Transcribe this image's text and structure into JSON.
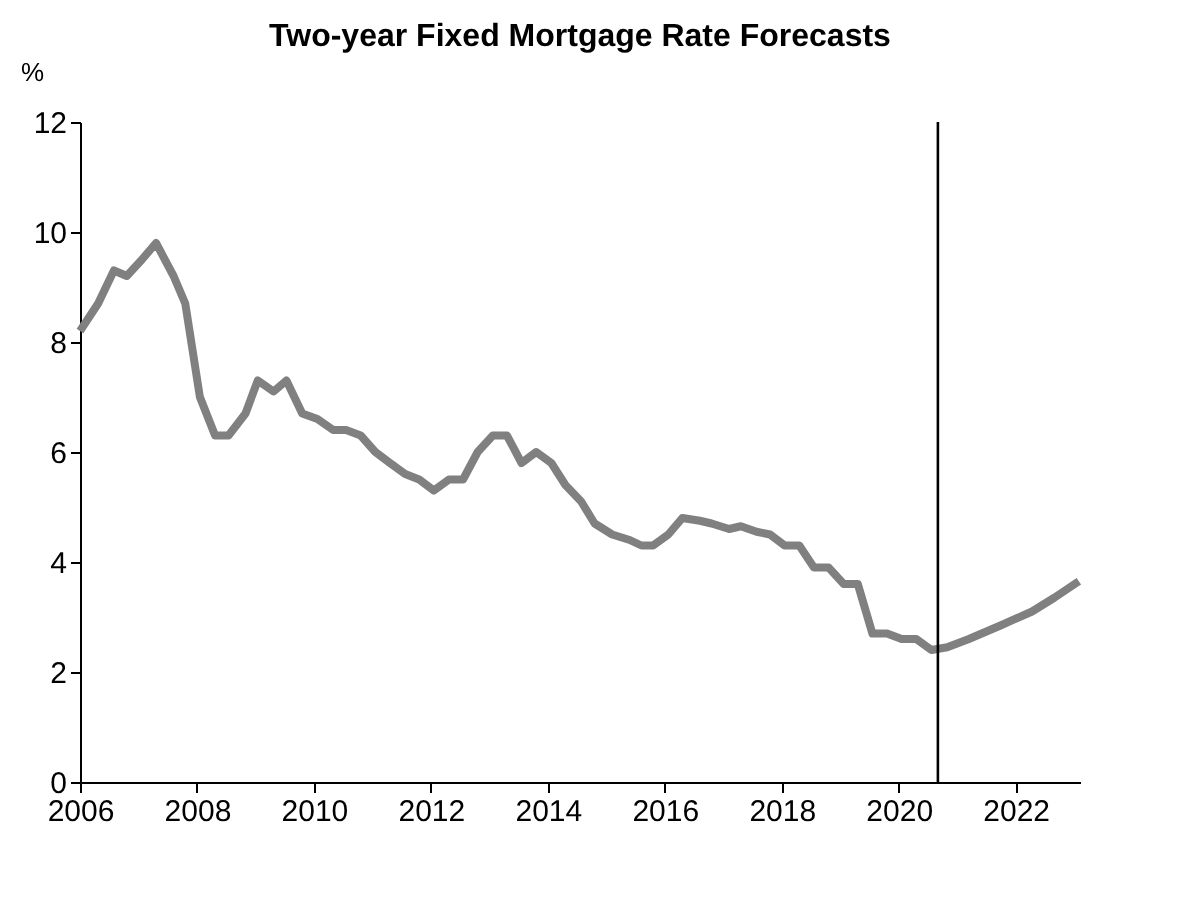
{
  "chart_data": {
    "type": "line",
    "title": "Two-year Fixed Mortgage Rate Forecasts",
    "ylabel": "%",
    "x": [
      2006.0,
      2006.31,
      2006.58,
      2006.8,
      2007.06,
      2007.3,
      2007.6,
      2007.8,
      2008.05,
      2008.31,
      2008.54,
      2008.83,
      2009.04,
      2009.31,
      2009.53,
      2009.8,
      2010.06,
      2010.33,
      2010.55,
      2010.8,
      2011.05,
      2011.3,
      2011.56,
      2011.8,
      2012.05,
      2012.31,
      2012.55,
      2012.8,
      2013.06,
      2013.3,
      2013.55,
      2013.8,
      2014.06,
      2014.3,
      2014.57,
      2014.8,
      2015.1,
      2015.4,
      2015.6,
      2015.8,
      2016.06,
      2016.3,
      2016.6,
      2016.8,
      2017.1,
      2017.3,
      2017.57,
      2017.8,
      2018.05,
      2018.3,
      2018.55,
      2018.8,
      2019.06,
      2019.3,
      2019.55,
      2019.8,
      2020.05,
      2020.3,
      2020.56,
      2020.83,
      2021.2,
      2021.75,
      2022.28,
      2022.66,
      2023.08
    ],
    "series": [
      {
        "color": "#808080",
        "values": [
          8.2,
          8.7,
          9.3,
          9.2,
          9.5,
          9.8,
          9.2,
          8.7,
          7.0,
          6.3,
          6.3,
          6.7,
          7.3,
          7.1,
          7.3,
          6.7,
          6.6,
          6.4,
          6.4,
          6.3,
          6.0,
          5.8,
          5.6,
          5.5,
          5.3,
          5.5,
          5.5,
          6.0,
          6.3,
          6.3,
          5.8,
          6.0,
          5.8,
          5.4,
          5.1,
          4.7,
          4.5,
          4.4,
          4.3,
          4.3,
          4.5,
          4.8,
          4.75,
          4.7,
          4.6,
          4.65,
          4.55,
          4.5,
          4.3,
          4.3,
          3.9,
          3.9,
          3.6,
          3.6,
          2.7,
          2.7,
          2.6,
          2.6,
          2.4,
          2.45,
          2.6,
          2.85,
          3.1,
          3.35,
          3.65
        ]
      }
    ],
    "xlim": [
      2006,
      2023.1
    ],
    "xticks": [
      2006,
      2008,
      2010,
      2012,
      2014,
      2016,
      2018,
      2020,
      2022
    ],
    "ylim": [
      0,
      12
    ],
    "yticks": [
      0,
      2,
      4,
      6,
      8,
      10,
      12
    ],
    "ref_lines": [
      {
        "axis": "x",
        "value": 2020.67,
        "color": "#000000"
      }
    ],
    "grid": false,
    "marker": "none",
    "line_style": "solid"
  }
}
